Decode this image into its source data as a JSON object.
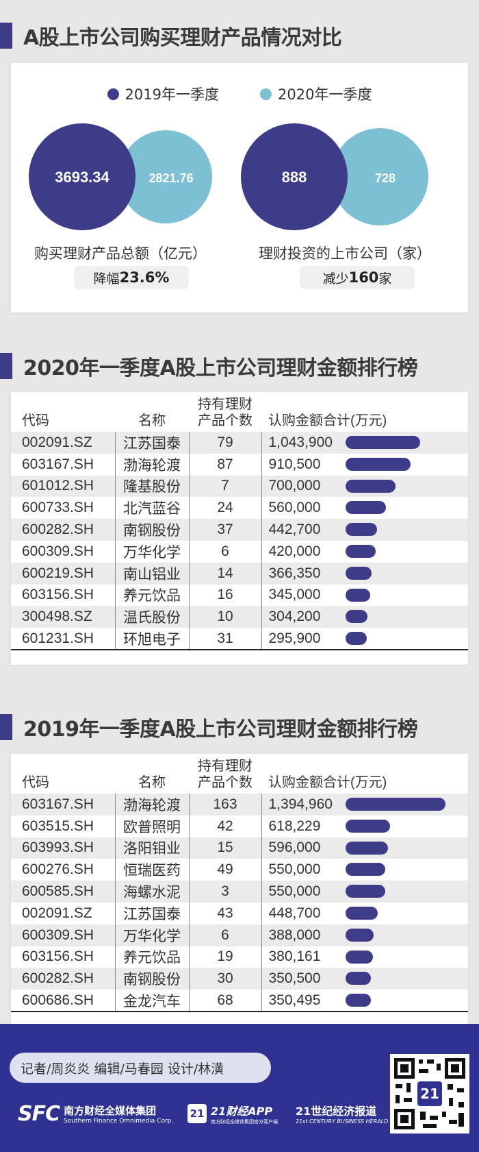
{
  "section1": {
    "title": "A股上市公司购买理财产品情况对比"
  },
  "legend": {
    "q2019": "2019年一季度",
    "q2020": "2020年一季度",
    "color_2019": "#3e3b88",
    "color_2020": "#7dbfd3"
  },
  "chart_data": [
    {
      "type": "bubble-compare",
      "caption": "购买理财产品总额（亿元）",
      "series": [
        {
          "name": "2019年一季度",
          "value": 3693.34,
          "label": "3693.34"
        },
        {
          "name": "2020年一季度",
          "value": 2821.76,
          "label": "2821.76"
        }
      ],
      "change_prefix": "降幅",
      "change_value": "23.6%",
      "change_suffix": ""
    },
    {
      "type": "bubble-compare",
      "caption": "理财投资的上市公司（家）",
      "series": [
        {
          "name": "2019年一季度",
          "value": 888,
          "label": "888"
        },
        {
          "name": "2020年一季度",
          "value": 728,
          "label": "728"
        }
      ],
      "change_prefix": "减少",
      "change_value": "160",
      "change_suffix": "家"
    },
    {
      "type": "table",
      "title": "2020年一季度A股上市公司理财金额排行榜",
      "headers": {
        "code": "代码",
        "name": "名称",
        "count_line1": "持有理财",
        "count_line2": "产品个数",
        "amount": "认购金额合计(万元)"
      },
      "max": 1394960,
      "rows": [
        {
          "code": "002091.SZ",
          "name": "江苏国泰",
          "count": "79",
          "amount": "1,043,900",
          "value": 1043900
        },
        {
          "code": "603167.SH",
          "name": "渤海轮渡",
          "count": "87",
          "amount": "910,500",
          "value": 910500
        },
        {
          "code": "601012.SH",
          "name": "隆基股份",
          "count": "7",
          "amount": "700,000",
          "value": 700000
        },
        {
          "code": "600733.SH",
          "name": "北汽蓝谷",
          "count": "24",
          "amount": "560,000",
          "value": 560000
        },
        {
          "code": "600282.SH",
          "name": "南钢股份",
          "count": "37",
          "amount": "442,700",
          "value": 442700
        },
        {
          "code": "600309.SH",
          "name": "万华化学",
          "count": "6",
          "amount": "420,000",
          "value": 420000
        },
        {
          "code": "600219.SH",
          "name": "南山铝业",
          "count": "14",
          "amount": "366,350",
          "value": 366350
        },
        {
          "code": "603156.SH",
          "name": "养元饮品",
          "count": "16",
          "amount": "345,000",
          "value": 345000
        },
        {
          "code": "300498.SZ",
          "name": "温氏股份",
          "count": "10",
          "amount": "304,200",
          "value": 304200
        },
        {
          "code": "601231.SH",
          "name": "环旭电子",
          "count": "31",
          "amount": "295,900",
          "value": 295900
        }
      ]
    },
    {
      "type": "table",
      "title": "2019年一季度A股上市公司理财金额排行榜",
      "headers": {
        "code": "代码",
        "name": "名称",
        "count_line1": "持有理财",
        "count_line2": "产品个数",
        "amount": "认购金额合计(万元)"
      },
      "max": 1394960,
      "rows": [
        {
          "code": "603167.SH",
          "name": "渤海轮渡",
          "count": "163",
          "amount": "1,394,960",
          "value": 1394960
        },
        {
          "code": "603515.SH",
          "name": "欧普照明",
          "count": "42",
          "amount": "618,229",
          "value": 618229
        },
        {
          "code": "603993.SH",
          "name": "洛阳钼业",
          "count": "15",
          "amount": "596,000",
          "value": 596000
        },
        {
          "code": "600276.SH",
          "name": "恒瑞医药",
          "count": "49",
          "amount": "550,000",
          "value": 550000
        },
        {
          "code": "600585.SH",
          "name": "海螺水泥",
          "count": "3",
          "amount": "550,000",
          "value": 550000
        },
        {
          "code": "002091.SZ",
          "name": "江苏国泰",
          "count": "43",
          "amount": "448,700",
          "value": 448700
        },
        {
          "code": "600309.SH",
          "name": "万华化学",
          "count": "6",
          "amount": "388,000",
          "value": 388000
        },
        {
          "code": "603156.SH",
          "name": "养元饮品",
          "count": "19",
          "amount": "380,161",
          "value": 380161
        },
        {
          "code": "600282.SH",
          "name": "南钢股份",
          "count": "30",
          "amount": "350,500",
          "value": 350500
        },
        {
          "code": "600686.SH",
          "name": "金龙汽车",
          "count": "68",
          "amount": "350,495",
          "value": 350495
        }
      ]
    }
  ],
  "footer": {
    "credits": "记者/周炎炎 编辑/马春园 设计/林潢",
    "sfc_logo": "SFC",
    "sfc_name": "南方财经全媒体集团",
    "sfc_en": "Southern Finance Omnimedia Corp.",
    "app_badge": "21",
    "app_name": "21财经APP",
    "app_sub": "南方财经全媒体集团官方客户端",
    "herald_name": "21世纪经济报道",
    "herald_en": "21st CENTURY BUSINESS HERALD",
    "qr_badge": "21"
  }
}
